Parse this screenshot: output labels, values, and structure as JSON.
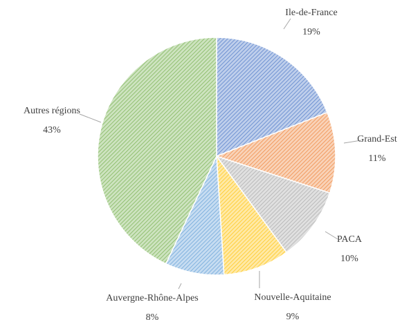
{
  "chart_data": {
    "type": "pie",
    "categories": [
      "Ile-de-France",
      "Grand-Est",
      "PACA",
      "Nouvelle-Aquitaine",
      "Auvergne-Rhône-Alpes",
      "Autres régions"
    ],
    "values": [
      19,
      11,
      10,
      9,
      8,
      43
    ],
    "value_labels": [
      "19%",
      "11%",
      "10%",
      "9%",
      "8%",
      "43%"
    ],
    "colors": [
      "#4472c4",
      "#ed7d31",
      "#a5a5a5",
      "#ffc000",
      "#5b9bd5",
      "#70ad47"
    ]
  }
}
